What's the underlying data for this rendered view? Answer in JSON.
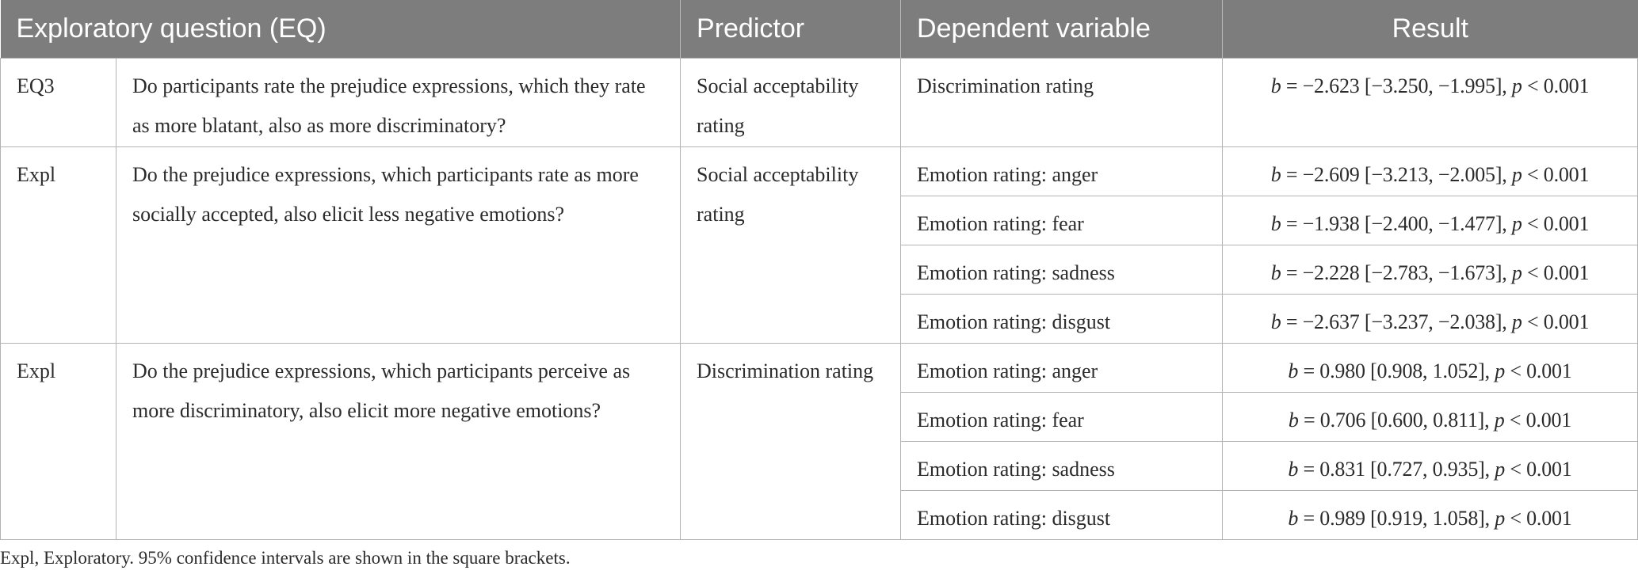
{
  "table": {
    "headers": {
      "question": "Exploratory question (EQ)",
      "predictor": "Predictor",
      "dependent": "Dependent variable",
      "result": "Result"
    },
    "stat_labels": {
      "b": "b",
      "p": "p"
    },
    "groups": [
      {
        "id": "EQ3",
        "question": "Do participants rate the prejudice expressions, which they rate as more blatant, also as more discriminatory?",
        "predictor": "Social acceptability rating",
        "rows": [
          {
            "dependent": "Discrimination rating",
            "b_text": " = −2.623 [−3.250, −1.995], ",
            "p_text": " < 0.001"
          }
        ]
      },
      {
        "id": "Expl",
        "question": "Do the prejudice expressions, which participants rate as more socially accepted, also elicit less negative emotions?",
        "predictor": "Social acceptability rating",
        "rows": [
          {
            "dependent": "Emotion rating: anger",
            "b_text": " = −2.609 [−3.213, −2.005], ",
            "p_text": " < 0.001"
          },
          {
            "dependent": "Emotion rating: fear",
            "b_text": " = −1.938 [−2.400, −1.477], ",
            "p_text": " < 0.001"
          },
          {
            "dependent": "Emotion rating: sadness",
            "b_text": " = −2.228 [−2.783, −1.673], ",
            "p_text": " < 0.001"
          },
          {
            "dependent": "Emotion rating: disgust",
            "b_text": " = −2.637 [−3.237, −2.038], ",
            "p_text": " < 0.001"
          }
        ]
      },
      {
        "id": "Expl",
        "question": "Do the prejudice expressions, which participants perceive as more discriminatory, also elicit more negative emotions?",
        "predictor": "Discrimination rating",
        "rows": [
          {
            "dependent": "Emotion rating: anger",
            "b_text": " = 0.980 [0.908, 1.052], ",
            "p_text": " < 0.001"
          },
          {
            "dependent": "Emotion rating: fear",
            "b_text": " = 0.706 [0.600, 0.811], ",
            "p_text": " < 0.001"
          },
          {
            "dependent": "Emotion rating: sadness",
            "b_text": " = 0.831 [0.727, 0.935], ",
            "p_text": " < 0.001"
          },
          {
            "dependent": "Emotion rating: disgust",
            "b_text": " = 0.989 [0.919, 1.058], ",
            "p_text": " < 0.001"
          }
        ]
      }
    ]
  },
  "footnote": "Expl, Exploratory. 95% confidence intervals are shown in the square brackets.",
  "colors": {
    "header_bg": "#7d7d7d",
    "header_text": "#ffffff",
    "grid": "#b3b3b3",
    "body_text": "#2b2b2b"
  }
}
